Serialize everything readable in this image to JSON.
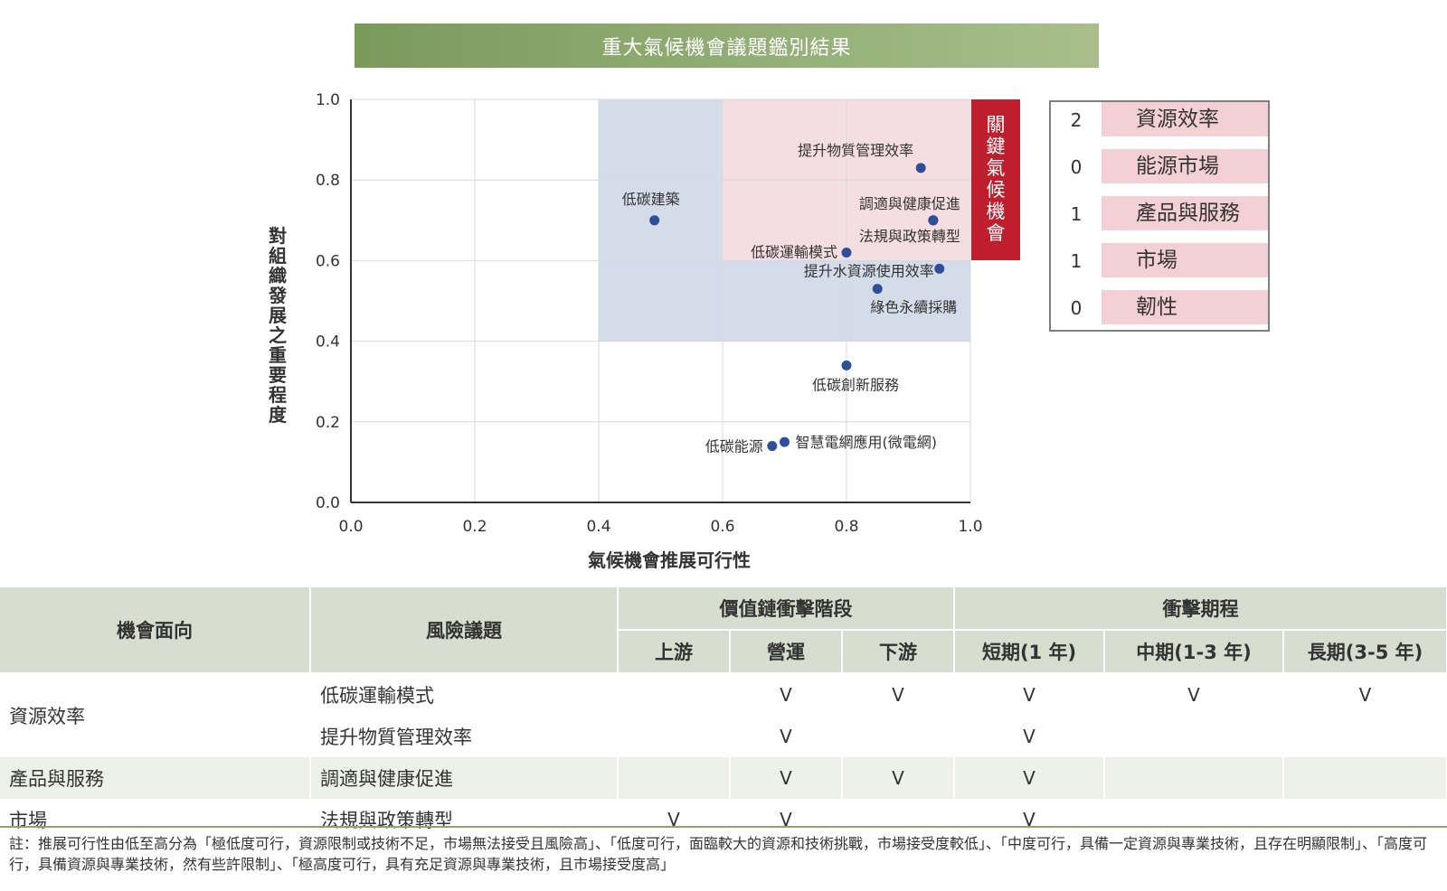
{
  "chart_data": {
    "type": "scatter",
    "title": "重大氣候機會議題鑑別結果",
    "xlabel": "氣候機會推展可行性",
    "ylabel": "對組織發展之重要程度",
    "xlim": [
      0.0,
      1.0
    ],
    "ylim": [
      0.0,
      1.0
    ],
    "xticks": [
      "0.0",
      "0.2",
      "0.4",
      "0.6",
      "0.8",
      "1.0"
    ],
    "yticks": [
      "0.0",
      "0.2",
      "0.4",
      "0.6",
      "0.8",
      "1.0"
    ],
    "grid": true,
    "points": [
      {
        "label": "提升物質管理效率",
        "x": 0.92,
        "y": 0.83
      },
      {
        "label": "低碳建築",
        "x": 0.49,
        "y": 0.7
      },
      {
        "label": "調適與健康促進",
        "x": 0.94,
        "y": 0.7
      },
      {
        "label": "法規與政策轉型",
        "x": 0.94,
        "y": 0.7
      },
      {
        "label": "低碳運輸模式",
        "x": 0.8,
        "y": 0.62
      },
      {
        "label": "提升水資源使用效率",
        "x": 0.95,
        "y": 0.58
      },
      {
        "label": "綠色永續採購",
        "x": 0.85,
        "y": 0.53
      },
      {
        "label": "低碳創新服務",
        "x": 0.8,
        "y": 0.34
      },
      {
        "label": "低碳能源",
        "x": 0.68,
        "y": 0.14
      },
      {
        "label": "智慧電網應用(微電網)",
        "x": 0.7,
        "y": 0.15
      }
    ],
    "regions": [
      {
        "name": "blue",
        "x": [
          0.4,
          1.0
        ],
        "y": [
          0.4,
          1.0
        ],
        "color": "#d4dbe9"
      },
      {
        "name": "pink",
        "x": [
          0.6,
          1.0
        ],
        "y": [
          0.6,
          1.0
        ],
        "color": "#f4dee2"
      }
    ],
    "key_label": "關鍵氣候機會",
    "colors": {
      "point": "#2f4f9b",
      "key": "#bf1e2d"
    }
  },
  "key_counts": [
    {
      "count": "2",
      "label": "資源效率"
    },
    {
      "count": "0",
      "label": "能源市場"
    },
    {
      "count": "1",
      "label": "產品與服務"
    },
    {
      "count": "1",
      "label": "市場"
    },
    {
      "count": "0",
      "label": "韌性"
    }
  ],
  "table": {
    "headers": {
      "aspect": "機會面向",
      "issue": "風險議題",
      "value_chain": "價值鏈衝擊階段",
      "timeline": "衝擊期程",
      "upstream": "上游",
      "operation": "營運",
      "downstream": "下游",
      "short": "短期(1 年)",
      "mid": "中期(1-3 年)",
      "long": "長期(3-5 年)"
    },
    "rows": [
      {
        "aspect": "資源效率",
        "issue": "低碳運輸模式",
        "marks": [
          "",
          "V",
          "V",
          "V",
          "V",
          "V"
        ]
      },
      {
        "aspect": "",
        "issue": "提升物質管理效率",
        "marks": [
          "",
          "V",
          "",
          "V",
          "",
          ""
        ]
      },
      {
        "aspect": "產品與服務",
        "issue": "調適與健康促進",
        "marks": [
          "",
          "V",
          "V",
          "V",
          "",
          ""
        ]
      },
      {
        "aspect": "市場",
        "issue": "法規與政策轉型",
        "marks": [
          "V",
          "V",
          "",
          "V",
          "",
          ""
        ]
      }
    ]
  },
  "note": "註：推展可行性由低至高分為「極低度可行，資源限制或技術不足，市場無法接受且風險高」、「低度可行，面臨較大的資源和技術挑戰，市場接受度較低」、「中度可行，具備一定資源與專業技術，且存在明顯限制」、「高度可行，具備資源與專業技術，然有些許限制」、「極高度可行，具有充足資源與專業技術，且市場接受度高」"
}
